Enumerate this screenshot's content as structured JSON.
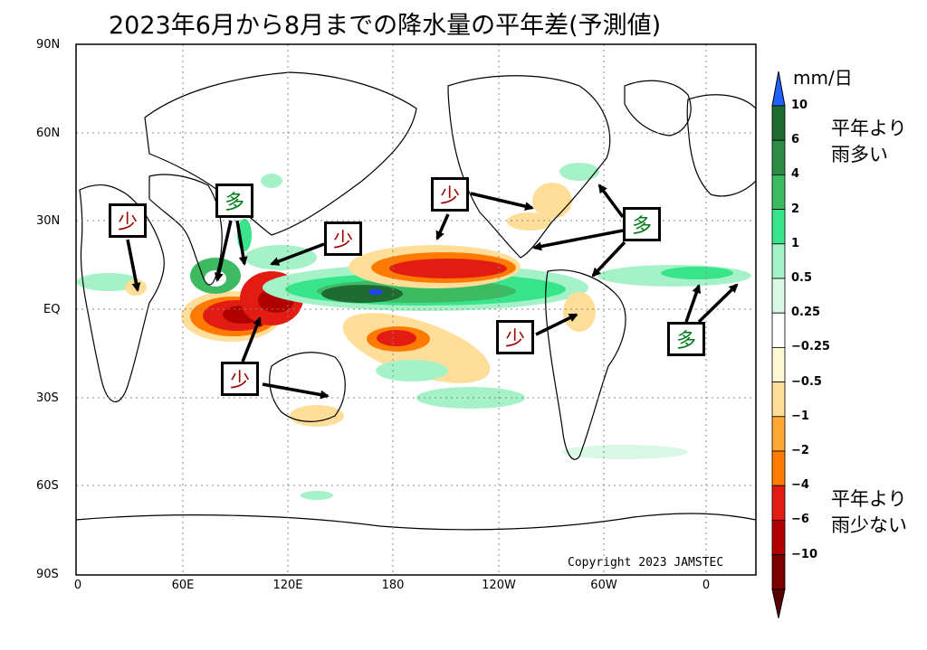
{
  "title": "2023年6月から8月までの降水量の平年差(予測値)",
  "axes": {
    "lat_labels": [
      "90N",
      "60N",
      "30N",
      "EQ",
      "30S",
      "60S",
      "90S"
    ],
    "lon_labels": [
      "0",
      "60E",
      "120E",
      "180",
      "120W",
      "60W",
      "0"
    ]
  },
  "copyright": "Copyright 2023 JAMSTEC",
  "colorbar": {
    "unit": "mm/日",
    "labels": [
      "10",
      "6",
      "4",
      "2",
      "1",
      "0.5",
      "0.25",
      "−0.25",
      "−0.5",
      "−1",
      "−2",
      "−4",
      "−6",
      "−10"
    ],
    "colors": [
      "#1f6b32",
      "#2e8b46",
      "#3dba62",
      "#39e58a",
      "#a6f2c8",
      "#daf8e6",
      "#ffffff",
      "#fff8d4",
      "#ffde9a",
      "#ffa836",
      "#ff7a00",
      "#e21c12",
      "#b00000",
      "#7a0000"
    ],
    "wet_label": [
      "平年より",
      "雨多い"
    ],
    "dry_label": [
      "平年より",
      "雨少ない"
    ]
  },
  "annotations": {
    "few": "少",
    "many": "多"
  }
}
